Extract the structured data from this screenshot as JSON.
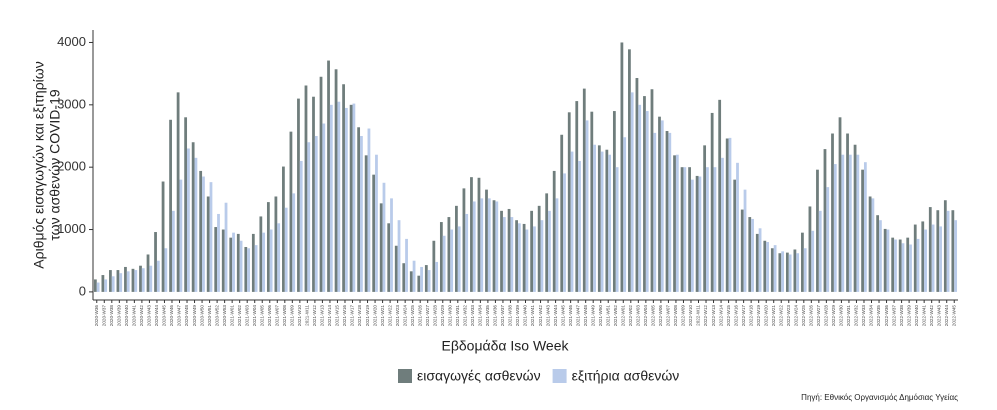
{
  "chart_data": {
    "type": "bar",
    "ylabel": [
      "Αριθμός εισαγωγών και εξιτηρίων",
      "των ασθενών COVID-19"
    ],
    "xlabel": "Εβδομάδα Iso Week",
    "source": "Πηγή: Εθνικός Οργανισμός Δημόσιας Υγείας",
    "ylim": [
      -130,
      4200
    ],
    "yticks": [
      0,
      1000,
      2000,
      3000,
      4000
    ],
    "grid": false,
    "legend": "bottom",
    "categories": [
      "2020-W36",
      "2020-W37",
      "2020-W38",
      "2020-W39",
      "2020-W40",
      "2020-W41",
      "2020-W42",
      "2020-W43",
      "2020-W44",
      "2020-W45",
      "2020-W46",
      "2020-W47",
      "2020-W48",
      "2020-W49",
      "2020-W50",
      "2020-W51",
      "2020-W52",
      "2020-W53",
      "2021-W01",
      "2021-W02",
      "2021-W03",
      "2021-W04",
      "2021-W05",
      "2021-W06",
      "2021-W07",
      "2021-W08",
      "2021-W09",
      "2021-W10",
      "2021-W11",
      "2021-W12",
      "2021-W13",
      "2021-W14",
      "2021-W15",
      "2021-W16",
      "2021-W17",
      "2021-W18",
      "2021-W19",
      "2021-W20",
      "2021-W21",
      "2021-W22",
      "2021-W23",
      "2021-W24",
      "2021-W25",
      "2021-W26",
      "2021-W27",
      "2021-W28",
      "2021-W29",
      "2021-W30",
      "2021-W31",
      "2021-W32",
      "2021-W33",
      "2021-W34",
      "2021-W35",
      "2021-W36",
      "2021-W37",
      "2021-W38",
      "2021-W39",
      "2021-W40",
      "2021-W41",
      "2021-W42",
      "2021-W43",
      "2021-W44",
      "2021-W45",
      "2021-W46",
      "2021-W47",
      "2021-W48",
      "2021-W49",
      "2021-W50",
      "2021-W51",
      "2021-W52",
      "2022-W01",
      "2022-W02",
      "2022-W03",
      "2022-W04",
      "2022-W05",
      "2022-W06",
      "2022-W07",
      "2022-W08",
      "2022-W09",
      "2022-W10",
      "2022-W11",
      "2022-W12",
      "2022-W13",
      "2022-W14",
      "2022-W15",
      "2022-W16",
      "2022-W17",
      "2022-W18",
      "2022-W19",
      "2022-W20",
      "2022-W21",
      "2022-W22",
      "2022-W23",
      "2022-W24",
      "2022-W25",
      "2022-W26",
      "2022-W27",
      "2022-W28",
      "2022-W29",
      "2022-W30",
      "2022-W31",
      "2022-W32",
      "2022-W33",
      "2022-W34",
      "2022-W35",
      "2022-W36",
      "2022-W37",
      "2022-W38",
      "2022-W39",
      "2022-W40",
      "2022-W41",
      "2022-W42",
      "2022-W43",
      "2022-W44",
      "2022-W45"
    ],
    "series": [
      {
        "name": "εισαγωγές ασθενών",
        "color": "#6f7d7c",
        "values": [
          200,
          270,
          350,
          350,
          400,
          370,
          420,
          600,
          960,
          1770,
          2760,
          3200,
          2800,
          2400,
          1940,
          1530,
          1040,
          1000,
          870,
          930,
          720,
          930,
          1210,
          1440,
          1530,
          2010,
          2570,
          3100,
          3310,
          3130,
          3450,
          3710,
          3570,
          3330,
          3000,
          2640,
          2190,
          1880,
          1420,
          1100,
          740,
          460,
          330,
          260,
          430,
          820,
          1120,
          1200,
          1380,
          1660,
          1840,
          1830,
          1640,
          1470,
          1300,
          1330,
          1150,
          1090,
          1300,
          1380,
          1580,
          1940,
          2520,
          2880,
          3060,
          3260,
          2890,
          2350,
          2280,
          2900,
          4000,
          3890,
          3430,
          3140,
          3250,
          2810,
          2580,
          2190,
          2000,
          2000,
          1860,
          2350,
          2870,
          3080,
          2460,
          1800,
          1320,
          1200,
          930,
          820,
          700,
          620,
          630,
          680,
          950,
          1370,
          1960,
          2290,
          2540,
          2800,
          2540,
          2360,
          1960,
          1530,
          1230,
          1010,
          870,
          840,
          870,
          1080,
          1130,
          1360,
          1310,
          1470,
          1310
        ]
      },
      {
        "name": "εξιτήρια ασθενών",
        "color": "#b9cbea",
        "values": [
          150,
          200,
          250,
          300,
          330,
          350,
          380,
          420,
          500,
          700,
          1300,
          1800,
          2300,
          2150,
          1850,
          1760,
          1250,
          1430,
          950,
          820,
          700,
          750,
          950,
          1000,
          1100,
          1350,
          1580,
          2100,
          2400,
          2500,
          2700,
          3000,
          3050,
          2950,
          3020,
          2500,
          2620,
          2200,
          1750,
          1500,
          1150,
          850,
          500,
          400,
          350,
          480,
          900,
          1000,
          1050,
          1250,
          1450,
          1500,
          1500,
          1450,
          1200,
          1200,
          1100,
          1000,
          1050,
          1150,
          1300,
          1500,
          1900,
          2250,
          2100,
          2750,
          2360,
          2250,
          2200,
          2000,
          2480,
          3200,
          3000,
          2900,
          2550,
          2750,
          2550,
          2200,
          2000,
          1800,
          1850,
          2000,
          2000,
          2150,
          2470,
          2070,
          1640,
          1170,
          1020,
          800,
          750,
          650,
          600,
          620,
          700,
          980,
          1300,
          1680,
          2050,
          2200,
          2200,
          2200,
          2080,
          1500,
          1150,
          1000,
          840,
          780,
          760,
          850,
          1000,
          1080,
          1050,
          1300,
          1150
        ]
      }
    ]
  }
}
